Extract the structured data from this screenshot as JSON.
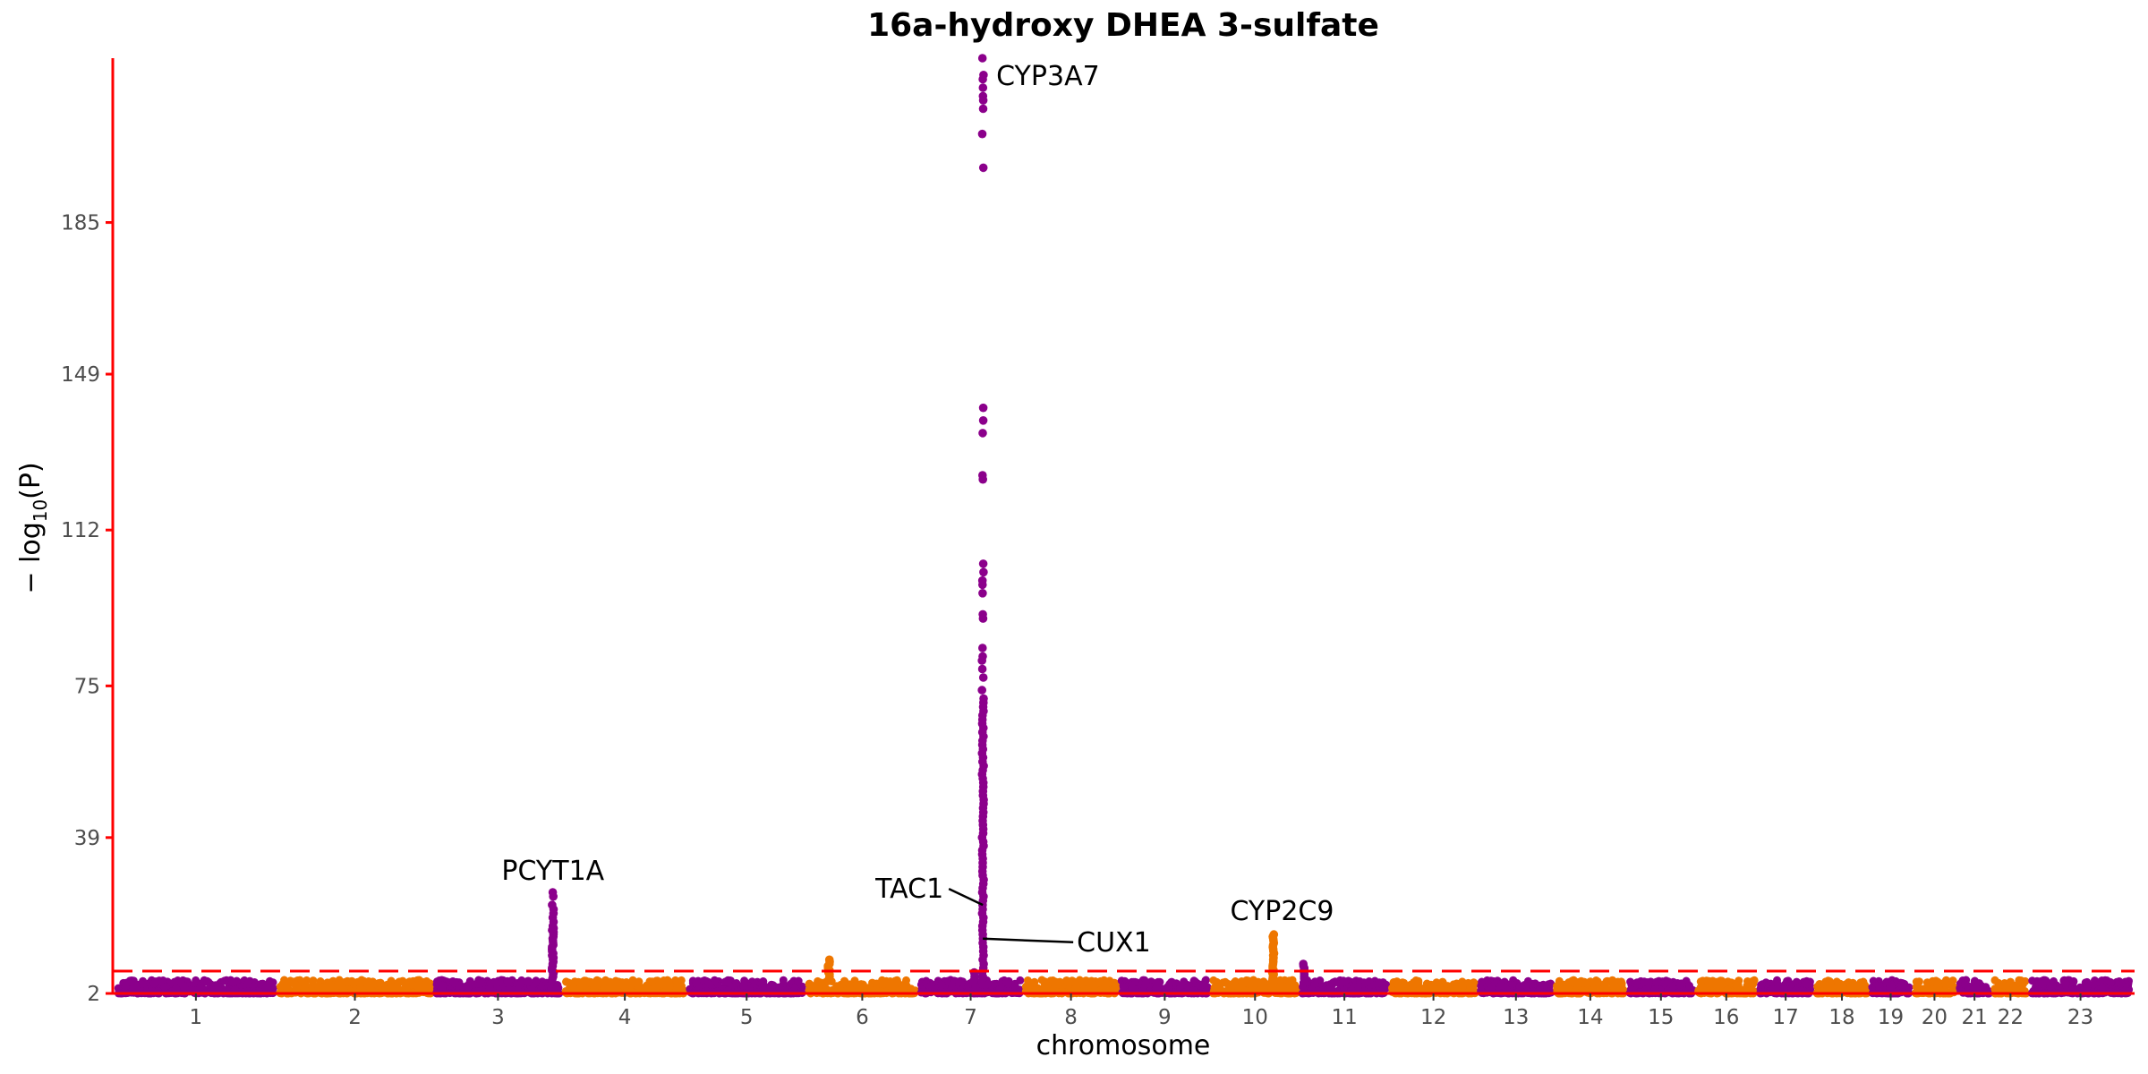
{
  "chart_data": {
    "type": "scatter",
    "subtype": "manhattan",
    "title": "16a-hydroxy DHEA 3-sulfate",
    "xlabel": "chromosome",
    "ylabel": "−log10(P)",
    "ylabel_parts": {
      "prefix": "− log",
      "subscript": "10",
      "suffix": "(P)"
    },
    "y_ticks": [
      2,
      39,
      75,
      112,
      149,
      185
    ],
    "y_tick_labels": [
      "2",
      "39",
      "75",
      "112",
      "149",
      "185"
    ],
    "ylim": [
      2,
      224
    ],
    "significance_threshold": 7.3,
    "colors": {
      "odd_chromosome": "#8b008b",
      "even_chromosome": "#ee7600",
      "axis": "#ff0000",
      "threshold_line": "#ff0000"
    },
    "chromosomes": [
      {
        "label": "1",
        "length": 249
      },
      {
        "label": "2",
        "length": 243
      },
      {
        "label": "3",
        "length": 198
      },
      {
        "label": "4",
        "length": 191
      },
      {
        "label": "5",
        "length": 182
      },
      {
        "label": "6",
        "length": 171
      },
      {
        "label": "7",
        "length": 159
      },
      {
        "label": "8",
        "length": 145
      },
      {
        "label": "9",
        "length": 138
      },
      {
        "label": "10",
        "length": 134
      },
      {
        "label": "11",
        "length": 135
      },
      {
        "label": "12",
        "length": 133
      },
      {
        "label": "13",
        "length": 114
      },
      {
        "label": "14",
        "length": 107
      },
      {
        "label": "15",
        "length": 102
      },
      {
        "label": "16",
        "length": 90
      },
      {
        "label": "17",
        "length": 83
      },
      {
        "label": "18",
        "length": 80
      },
      {
        "label": "19",
        "length": 59
      },
      {
        "label": "20",
        "length": 64
      },
      {
        "label": "21",
        "length": 47
      },
      {
        "label": "22",
        "length": 51
      },
      {
        "label": "23",
        "length": 156
      }
    ],
    "peaks": [
      {
        "chr": "3",
        "pos": 187,
        "values": [
          26,
          25,
          23,
          22,
          21,
          20,
          19,
          18,
          17.5,
          17,
          16.5,
          16,
          15.5,
          15,
          14.5,
          14,
          13.5,
          13,
          12.5,
          12,
          11.5,
          11,
          10.5,
          10,
          9.5,
          9,
          8.5,
          8,
          7.5,
          7,
          6.5,
          6,
          5.5,
          5
        ]
      },
      {
        "chr": "6",
        "pos": 32,
        "values": [
          10,
          9.5,
          9,
          8.5,
          8,
          7.5,
          7,
          6.5,
          6,
          5.5,
          5
        ]
      },
      {
        "chr": "7",
        "pos": 99,
        "values": [
          224,
          220,
          219,
          217,
          215,
          214,
          212,
          206,
          198,
          141,
          138,
          135,
          125,
          124,
          104,
          102,
          100,
          99,
          97,
          92,
          91,
          84,
          82,
          81,
          79,
          77,
          74,
          72,
          71,
          70,
          69,
          68,
          67,
          66,
          65,
          64,
          63,
          62,
          61,
          60,
          59,
          58,
          57,
          56,
          55,
          54,
          53,
          52,
          51,
          50,
          49,
          48,
          47,
          46,
          45,
          44,
          43,
          42,
          41,
          40,
          39,
          38,
          37,
          36,
          35,
          34,
          33,
          32,
          31,
          30,
          29,
          28,
          27,
          26,
          25,
          24,
          23,
          22,
          21,
          20,
          19,
          18,
          17,
          16,
          15,
          14,
          13,
          12,
          11,
          10,
          9,
          8,
          7,
          6,
          5
        ]
      },
      {
        "chr": "7",
        "pos": 85,
        "values": [
          7,
          6,
          5
        ]
      },
      {
        "chr": "10",
        "pos": 96,
        "values": [
          16,
          15.5,
          15,
          14.5,
          14,
          13.5,
          13,
          12.5,
          12,
          11.5,
          11,
          10.5,
          10,
          9.5,
          9,
          8.5,
          8,
          7.5,
          7,
          6.5,
          6,
          5.5,
          5
        ]
      },
      {
        "chr": "11",
        "pos": 3,
        "values": [
          9,
          8.5,
          8,
          7.5,
          7,
          6.5,
          6,
          5.5,
          5
        ]
      }
    ],
    "annotations": [
      {
        "text": "CYP3A7",
        "chr": "7",
        "pos": 99,
        "y": 224,
        "dx": 15,
        "dy": 30,
        "anchor": "start"
      },
      {
        "text": "PCYT1A",
        "chr": "3",
        "pos": 187,
        "y": 26,
        "dx": 0,
        "dy": -14,
        "anchor": "middle"
      },
      {
        "text": "TAC1",
        "chr": "7",
        "pos": 99,
        "y": 23,
        "dx": -120,
        "dy": -8,
        "anchor": "start",
        "leader": true
      },
      {
        "text": "CUX1",
        "chr": "7",
        "pos": 99,
        "y": 15,
        "dx": 105,
        "dy": 14,
        "anchor": "start",
        "leader": true
      },
      {
        "text": "CYP2C9",
        "chr": "10",
        "pos": 96,
        "y": 16,
        "dx": 10,
        "dy": -16,
        "anchor": "middle"
      }
    ]
  }
}
